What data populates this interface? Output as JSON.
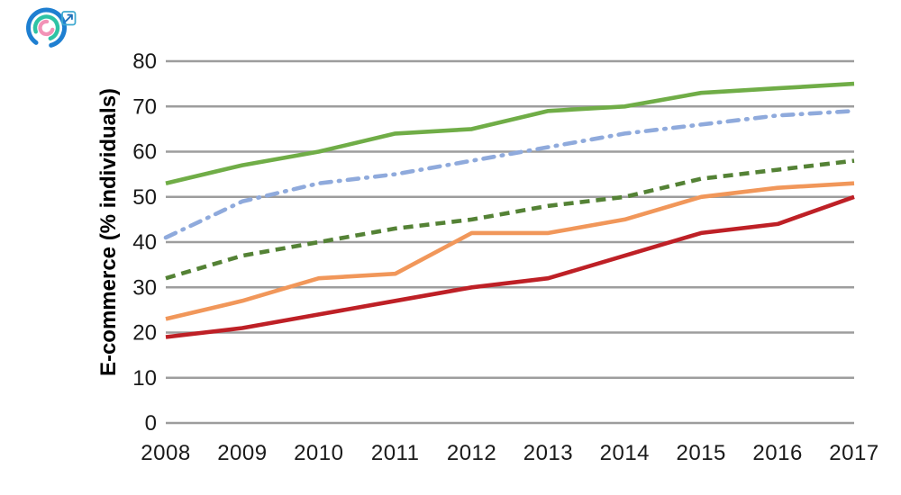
{
  "logo": {
    "name": "concentric-arcs-logo",
    "outer_arc_color": "#1E7FD1",
    "middle_arc_color": "#2EC3A5",
    "inner_arc_color": "#F293B7",
    "external_link_box_color": "#3FA9D0",
    "external_link_arrow_color": "#2272B9"
  },
  "chart_data": {
    "type": "line",
    "title": "",
    "xlabel": "",
    "ylabel": "E-commerce (% individuals)",
    "x": [
      2008,
      2009,
      2010,
      2011,
      2012,
      2013,
      2014,
      2015,
      2016,
      2017
    ],
    "x_labels": [
      "2008",
      "2009",
      "2010",
      "2011",
      "2012",
      "2013",
      "2014",
      "2015",
      "2016",
      "2017"
    ],
    "ylim": [
      0,
      80
    ],
    "yticks": [
      0,
      10,
      20,
      30,
      40,
      50,
      60,
      70,
      80
    ],
    "grid": "horizontal-only",
    "legend_position": "none",
    "axis_color": "#9D9D9D",
    "tick_label_color": "#1A1A1A",
    "series": [
      {
        "name": "green-solid-line",
        "style": "solid",
        "color": "#70AD47",
        "values": [
          53,
          57,
          60,
          64,
          65,
          69,
          70,
          73,
          74,
          75
        ]
      },
      {
        "name": "blue-dash-dot-line",
        "style": "dash-dot",
        "color": "#8FAADC",
        "values": [
          41,
          49,
          53,
          55,
          58,
          61,
          64,
          66,
          68,
          69
        ]
      },
      {
        "name": "green-dashed-line",
        "style": "dashed",
        "color": "#548235",
        "values": [
          32,
          37,
          40,
          43,
          45,
          48,
          50,
          54,
          56,
          58
        ]
      },
      {
        "name": "orange-solid-line",
        "style": "solid",
        "color": "#F1975A",
        "values": [
          23,
          27,
          32,
          33,
          42,
          42,
          45,
          50,
          52,
          53
        ]
      },
      {
        "name": "red-solid-line",
        "style": "solid",
        "color": "#BE2026",
        "values": [
          19,
          21,
          24,
          27,
          30,
          32,
          37,
          42,
          44,
          50
        ]
      }
    ]
  }
}
